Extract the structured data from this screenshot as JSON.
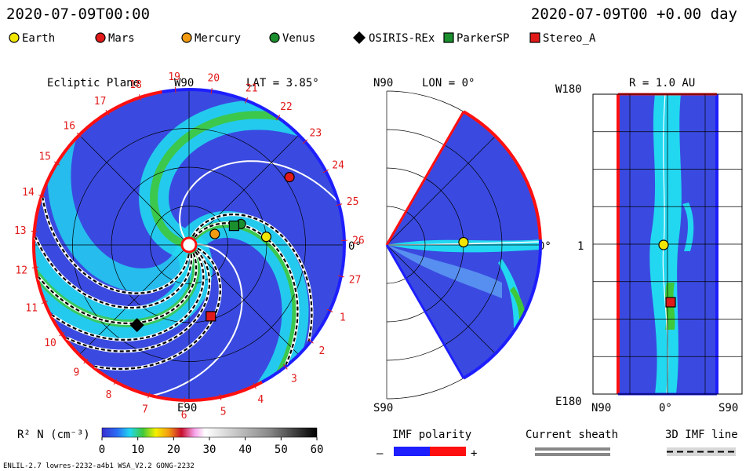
{
  "header": {
    "datetime": "2020-07-09T00:00",
    "elapsed": "2020-07-09T00 +0.00 day"
  },
  "legend": [
    {
      "label": "Earth",
      "shape": "circle",
      "color": "#f2e600"
    },
    {
      "label": "Mars",
      "shape": "circle",
      "color": "#e21a1a"
    },
    {
      "label": "Mercury",
      "shape": "circle",
      "color": "#f39c12"
    },
    {
      "label": "Venus",
      "shape": "circle",
      "color": "#1b8f2e"
    },
    {
      "label": "OSIRIS-REx",
      "shape": "diamond",
      "color": "#000000"
    },
    {
      "label": "ParkerSP",
      "shape": "square",
      "color": "#1b8f2e"
    },
    {
      "label": "Stereo_A",
      "shape": "square",
      "color": "#e21a1a"
    }
  ],
  "colors": {
    "positive_polarity": "#ff1010",
    "negative_polarity": "#1e1eff",
    "background_density": "#3a4ae0",
    "stream_cyan": "#22d8f0",
    "stream_green": "#3ec83a"
  },
  "panels": {
    "ecliptic": {
      "title": "Ecliptic Plane",
      "top_label": "W90",
      "lat_label": "LAT = 3.85°",
      "bottom_label": "E90",
      "right_label": "0°"
    },
    "meridional": {
      "top_label": "N90",
      "lon_label": "LON = 0°",
      "bottom_label": "S90",
      "right_label": "0°"
    },
    "radial": {
      "title": "R = 1.0 AU",
      "top_left": "W180",
      "mid_left": "1",
      "bottom_left": "E180",
      "x_left": "N90",
      "x_mid": "0°",
      "x_right": "S90"
    }
  },
  "chart_data": [
    {
      "type": "heatmap",
      "title": "Ecliptic Plane",
      "subtitle": "LAT = 3.85°",
      "carrington_labels": [
        "19",
        "20",
        "21",
        "22",
        "23",
        "24",
        "25",
        "26",
        "27",
        "1",
        "2",
        "3",
        "4",
        "5",
        "6",
        "7",
        "8",
        "9",
        "10",
        "11",
        "12",
        "13",
        "14",
        "15",
        "16",
        "17",
        "18"
      ],
      "bodies": [
        {
          "name": "Earth",
          "r_au": 1.0,
          "angle_deg": 6
        },
        {
          "name": "Mars",
          "r_au": 1.56,
          "angle_deg": 34
        },
        {
          "name": "Mercury",
          "r_au": 0.36,
          "angle_deg": 23
        },
        {
          "name": "Venus",
          "r_au": 0.72,
          "angle_deg": 22
        },
        {
          "name": "OSIRIS-REx",
          "r_au": 1.23,
          "angle_deg": -123
        },
        {
          "name": "ParkerSP",
          "r_au": 0.63,
          "angle_deg": 23
        },
        {
          "name": "Stereo_A",
          "r_au": 0.96,
          "angle_deg": -73
        }
      ]
    },
    {
      "type": "heatmap",
      "title": "",
      "subtitle": "LON = 0°",
      "y_range": [
        "N90",
        "S90"
      ]
    },
    {
      "type": "heatmap",
      "title": "R = 1.0 AU",
      "x_ticks": [
        "N90",
        "0°",
        "S90"
      ],
      "y_ticks": [
        "W180",
        "1",
        "E180"
      ]
    }
  ],
  "colorbar": {
    "label": "R² N (cm⁻³)",
    "ticks": [
      "0",
      "10",
      "20",
      "30",
      "40",
      "50",
      "60"
    ],
    "min": 0,
    "max": 60
  },
  "key": {
    "imf_title": "IMF polarity",
    "imf_minus": "–",
    "imf_plus": "+",
    "sheath_title": "Current sheath",
    "imf_line_title": "3D IMF line"
  },
  "footer": {
    "model_info": "ENLIL-2.7 lowres-2232-a4b1 WSA_V2.2 GONG-2232"
  }
}
